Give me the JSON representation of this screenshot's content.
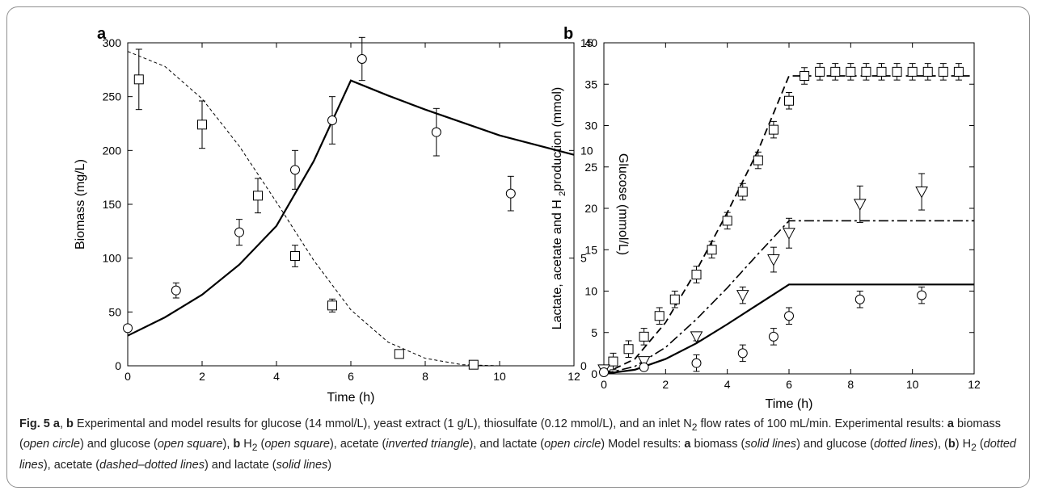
{
  "figure_label": "Fig. 5",
  "caption": {
    "segments": [
      {
        "t": "a",
        "s": "b"
      },
      {
        "t": ", ",
        "s": ""
      },
      {
        "t": "b",
        "s": "b"
      },
      {
        "t": " Experimental and model results for glucose (14 mmol/L), yeast extract (1 g/L), thiosulfate (0.12 mmol/L), and an inlet N",
        "s": ""
      },
      {
        "t": "2",
        "s": "sub"
      },
      {
        "t": " flow rates of 100 mL/min. Experimental results: ",
        "s": ""
      },
      {
        "t": "a",
        "s": "b"
      },
      {
        "t": " biomass (",
        "s": ""
      },
      {
        "t": "open circle",
        "s": "i"
      },
      {
        "t": ") and glucose (",
        "s": ""
      },
      {
        "t": "open square",
        "s": "i"
      },
      {
        "t": "), ",
        "s": ""
      },
      {
        "t": "b",
        "s": "b"
      },
      {
        "t": " H",
        "s": ""
      },
      {
        "t": "2",
        "s": "sub"
      },
      {
        "t": " (",
        "s": ""
      },
      {
        "t": "open square",
        "s": "i"
      },
      {
        "t": "), acetate (",
        "s": ""
      },
      {
        "t": "inverted triangle",
        "s": "i"
      },
      {
        "t": "), and lactate (",
        "s": ""
      },
      {
        "t": "open circle",
        "s": "i"
      },
      {
        "t": ") Model results: ",
        "s": ""
      },
      {
        "t": "a",
        "s": "b"
      },
      {
        "t": " biomass (",
        "s": ""
      },
      {
        "t": "solid lines",
        "s": "i"
      },
      {
        "t": ") and glucose (",
        "s": ""
      },
      {
        "t": "dotted lines",
        "s": "i"
      },
      {
        "t": "), (",
        "s": ""
      },
      {
        "t": "b",
        "s": "b"
      },
      {
        "t": ") H",
        "s": ""
      },
      {
        "t": "2",
        "s": "sub"
      },
      {
        "t": " (",
        "s": ""
      },
      {
        "t": "dotted lines",
        "s": "i"
      },
      {
        "t": "), acetate (",
        "s": ""
      },
      {
        "t": "dashed–dotted lines",
        "s": "i"
      },
      {
        "t": ") and lactate (",
        "s": ""
      },
      {
        "t": "solid lines",
        "s": "i"
      },
      {
        "t": ")",
        "s": ""
      }
    ]
  },
  "chart_data": [
    {
      "panel": "a",
      "type": "scatter",
      "xlabel": "Time (h)",
      "ylabel": "Biomass (mg/L)",
      "ylabel_right": "Glucose (mmol/L)",
      "xlim": [
        0,
        12
      ],
      "ylim": [
        0,
        300
      ],
      "ylim_right": [
        0,
        15
      ],
      "xticks": [
        0,
        2,
        4,
        6,
        8,
        10,
        12
      ],
      "yticks": [
        0,
        50,
        100,
        150,
        200,
        250,
        300
      ],
      "yticks_right": [
        0,
        5,
        10,
        15
      ],
      "series": [
        {
          "marker": "circle",
          "axis": "left",
          "x": [
            0,
            1.3,
            3,
            4.5,
            5.5,
            6.3,
            8.3,
            10.3
          ],
          "y": [
            35,
            70,
            124,
            182,
            228,
            285,
            217,
            160
          ],
          "err": [
            0,
            7,
            12,
            18,
            22,
            20,
            22,
            16
          ]
        },
        {
          "marker": "square",
          "axis": "right",
          "x": [
            0.3,
            2,
            3.5,
            4.5,
            5.5,
            7.3,
            9.3
          ],
          "y": [
            13.3,
            11.2,
            7.9,
            5.1,
            2.8,
            0.55,
            0.05
          ],
          "err": [
            1.4,
            1.1,
            0.8,
            0.5,
            0.3,
            0.15,
            0
          ]
        },
        {
          "line": "solid",
          "axis": "left",
          "x": [
            0,
            1,
            2,
            3,
            4,
            5,
            6,
            7,
            8,
            9,
            10,
            11,
            12
          ],
          "y": [
            28,
            45,
            66,
            94,
            130,
            190,
            265,
            251,
            238,
            226,
            214,
            205,
            196
          ]
        },
        {
          "line": "dotted",
          "axis": "right",
          "x": [
            0,
            1,
            2,
            3,
            4,
            5,
            6,
            7,
            8,
            9,
            10
          ],
          "y": [
            14.6,
            13.9,
            12.4,
            10.2,
            7.6,
            4.9,
            2.6,
            1.1,
            0.35,
            0.05,
            0
          ]
        }
      ]
    },
    {
      "panel": "b",
      "type": "scatter",
      "xlabel": "Time (h)",
      "ylabel": "Lactate, acetate and H2production (mmol)",
      "xlim": [
        0,
        12
      ],
      "ylim": [
        0,
        40
      ],
      "xticks": [
        0,
        2,
        4,
        6,
        8,
        10,
        12
      ],
      "yticks": [
        0,
        5,
        10,
        15,
        20,
        25,
        30,
        35,
        40
      ],
      "series": [
        {
          "marker": "square",
          "x": [
            0.3,
            0.8,
            1.3,
            1.8,
            2.3,
            3,
            3.5,
            4,
            4.5,
            5,
            5.5,
            6,
            6.5,
            7,
            7.5,
            8,
            8.5,
            9,
            9.5,
            10,
            10.5,
            11,
            11.5
          ],
          "y": [
            1.5,
            3,
            4.5,
            7,
            9,
            12,
            15,
            18.5,
            22,
            25.8,
            29.5,
            33,
            36,
            36.5,
            36.5,
            36.5,
            36.5,
            36.5,
            36.5,
            36.5,
            36.5,
            36.5,
            36.5
          ],
          "err": [
            1,
            1,
            1,
            1,
            1,
            1,
            1,
            1,
            1,
            1,
            1,
            1,
            1,
            1,
            1,
            1,
            1,
            1,
            1,
            1,
            1,
            1,
            1
          ]
        },
        {
          "marker": "triangle-down",
          "x": [
            0,
            1.3,
            3,
            4.5,
            5.5,
            6,
            8.3,
            10.3
          ],
          "y": [
            0.5,
            1.5,
            4.5,
            9.5,
            13.8,
            17,
            20.5,
            22
          ],
          "err": [
            0.3,
            0.5,
            0.5,
            1,
            1.5,
            1.8,
            2.2,
            2.2
          ]
        },
        {
          "marker": "circle",
          "x": [
            0,
            1.3,
            3,
            4.5,
            5.5,
            6,
            8.3,
            10.3
          ],
          "y": [
            0.2,
            0.8,
            1.3,
            2.5,
            4.5,
            7,
            9,
            9.5
          ],
          "err": [
            0.2,
            0.3,
            1,
            1,
            1,
            1,
            1,
            1
          ]
        },
        {
          "line": "dashed",
          "x": [
            0,
            1,
            2,
            3,
            4,
            5,
            5.5,
            6,
            12
          ],
          "y": [
            0,
            1.8,
            6.2,
            12.5,
            19.5,
            27,
            31.5,
            36,
            36
          ]
        },
        {
          "line": "dash-dot",
          "x": [
            0,
            1,
            2,
            3,
            4,
            5,
            5.5,
            6,
            12
          ],
          "y": [
            0,
            0.9,
            3.2,
            6.6,
            10.4,
            14.5,
            16.5,
            18.5,
            18.5
          ]
        },
        {
          "line": "solid",
          "x": [
            0,
            1,
            2,
            3,
            4,
            5,
            6,
            12
          ],
          "y": [
            0,
            0.5,
            1.8,
            3.7,
            6,
            8.4,
            10.8,
            10.8
          ]
        }
      ]
    }
  ]
}
